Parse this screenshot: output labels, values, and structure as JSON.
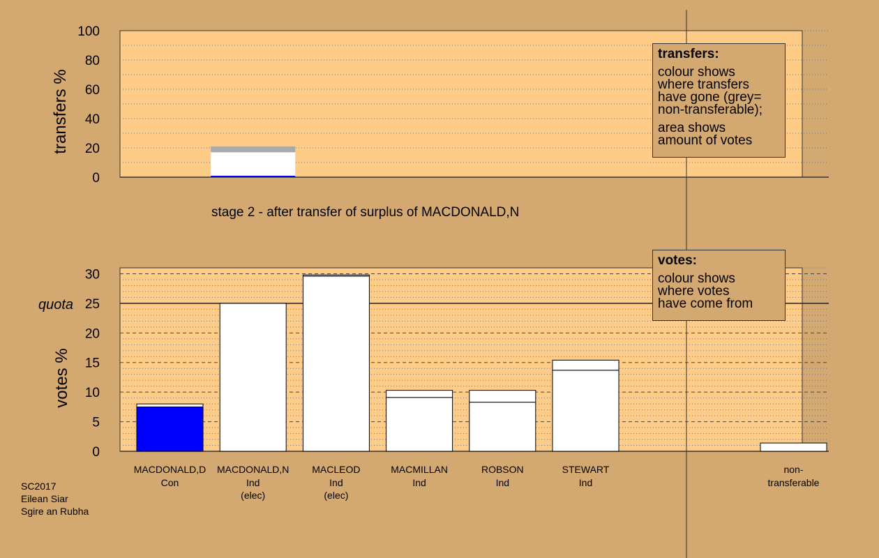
{
  "chart_data": [
    {
      "type": "bar",
      "ylabel": "transfers %",
      "ylim": [
        0,
        100
      ],
      "yticks": [
        0,
        20,
        40,
        60,
        80,
        100
      ],
      "bars": [
        {
          "candidate": "MACDONALD,D",
          "segments": [
            {
              "value": 1.0,
              "color": "#0000ff"
            },
            {
              "value": 16.0,
              "color": "#ffffff"
            },
            {
              "value": 4.0,
              "color": "#aaaaaa"
            }
          ]
        }
      ],
      "caption": "stage 2 - after transfer of surplus of MACDONALD,N",
      "legend": {
        "title": "transfers:",
        "lines_a": [
          "colour shows",
          "where transfers",
          "have gone (grey=",
          "non-transferable);"
        ],
        "lines_b": [
          "area shows",
          "amount of votes"
        ]
      }
    },
    {
      "type": "bar",
      "ylabel": "votes %",
      "ylim": [
        0,
        31
      ],
      "yticks": [
        0,
        5,
        10,
        15,
        20,
        25,
        30
      ],
      "quota": 25,
      "quota_label": "quota",
      "categories": [
        {
          "name": "MACDONALD,D",
          "party": "Con",
          "extra": ""
        },
        {
          "name": "MACDONALD,N",
          "party": "Ind",
          "extra": "(elec)"
        },
        {
          "name": "MACLEOD",
          "party": "Ind",
          "extra": "(elec)"
        },
        {
          "name": "MACMILLAN",
          "party": "Ind",
          "extra": ""
        },
        {
          "name": "ROBSON",
          "party": "Ind",
          "extra": ""
        },
        {
          "name": "STEWART",
          "party": "Ind",
          "extra": ""
        }
      ],
      "bars": [
        {
          "base": 7.5,
          "transfer": 0.5,
          "base_color": "#0000ff"
        },
        {
          "base": 25.0,
          "transfer": 0.0,
          "base_color": "#ffffff"
        },
        {
          "base": 29.6,
          "transfer": 0.2,
          "base_color": "#ffffff"
        },
        {
          "base": 9.1,
          "transfer": 1.2,
          "base_color": "#ffffff"
        },
        {
          "base": 8.3,
          "transfer": 2.0,
          "base_color": "#ffffff"
        },
        {
          "base": 13.7,
          "transfer": 1.7,
          "base_color": "#ffffff"
        }
      ],
      "nontransferable": {
        "value": 1.4,
        "label_line1": "non-",
        "label_line2": "transferable"
      },
      "legend": {
        "title": "votes:",
        "lines": [
          "colour shows",
          "where votes",
          "have come from"
        ]
      }
    }
  ],
  "footer": {
    "line1": "SC2017",
    "line2": "Eilean Siar",
    "line3": "Sgire an Rubha"
  },
  "colors": {
    "background": "#d4a971",
    "plot_background": "#ffcc88",
    "line": "#333333"
  }
}
